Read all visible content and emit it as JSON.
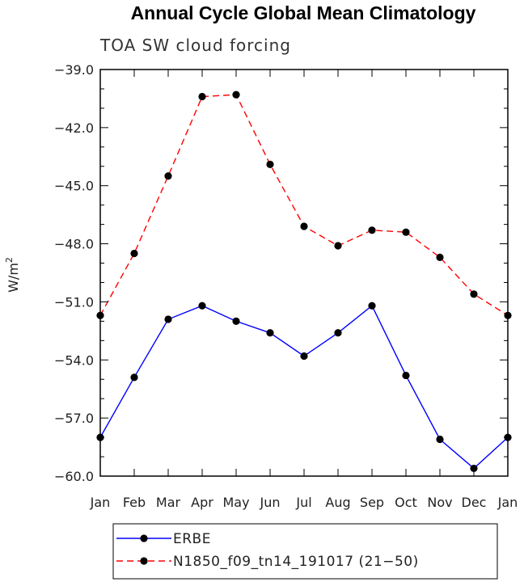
{
  "chart_data": {
    "type": "line",
    "title": "Annual Cycle Global Mean Climatology",
    "subtitle": "TOA SW cloud forcing",
    "ylabel": "W/m",
    "ylabel_sup": "2",
    "xlabel": "",
    "categories": [
      "Jan",
      "Feb",
      "Mar",
      "Apr",
      "May",
      "Jun",
      "Jul",
      "Aug",
      "Sep",
      "Oct",
      "Nov",
      "Dec",
      "Jan"
    ],
    "ylim": [
      -60.0,
      -39.0
    ],
    "yticks": [
      -39.0,
      -42.0,
      -45.0,
      -48.0,
      -51.0,
      -54.0,
      -57.0,
      -60.0
    ],
    "ytick_labels": [
      "−39.0",
      "−42.0",
      "−45.0",
      "−48.0",
      "−51.0",
      "−54.0",
      "−57.0",
      "−60.0"
    ],
    "series": [
      {
        "name": "ERBE",
        "color": "#0000ff",
        "dash": "solid",
        "values": [
          -58.0,
          -54.9,
          -51.9,
          -51.2,
          -52.0,
          -52.6,
          -53.8,
          -52.6,
          -51.2,
          -54.8,
          -58.1,
          -59.6,
          -58.0
        ]
      },
      {
        "name": "N1850_f09_tn14_191017 (21−50)",
        "color": "#ff0000",
        "dash": "dashed",
        "values": [
          -51.7,
          -48.5,
          -44.5,
          -40.4,
          -40.3,
          -43.9,
          -47.1,
          -48.1,
          -47.3,
          -47.4,
          -48.7,
          -50.6,
          -51.7
        ]
      }
    ],
    "legend": "bottom"
  }
}
